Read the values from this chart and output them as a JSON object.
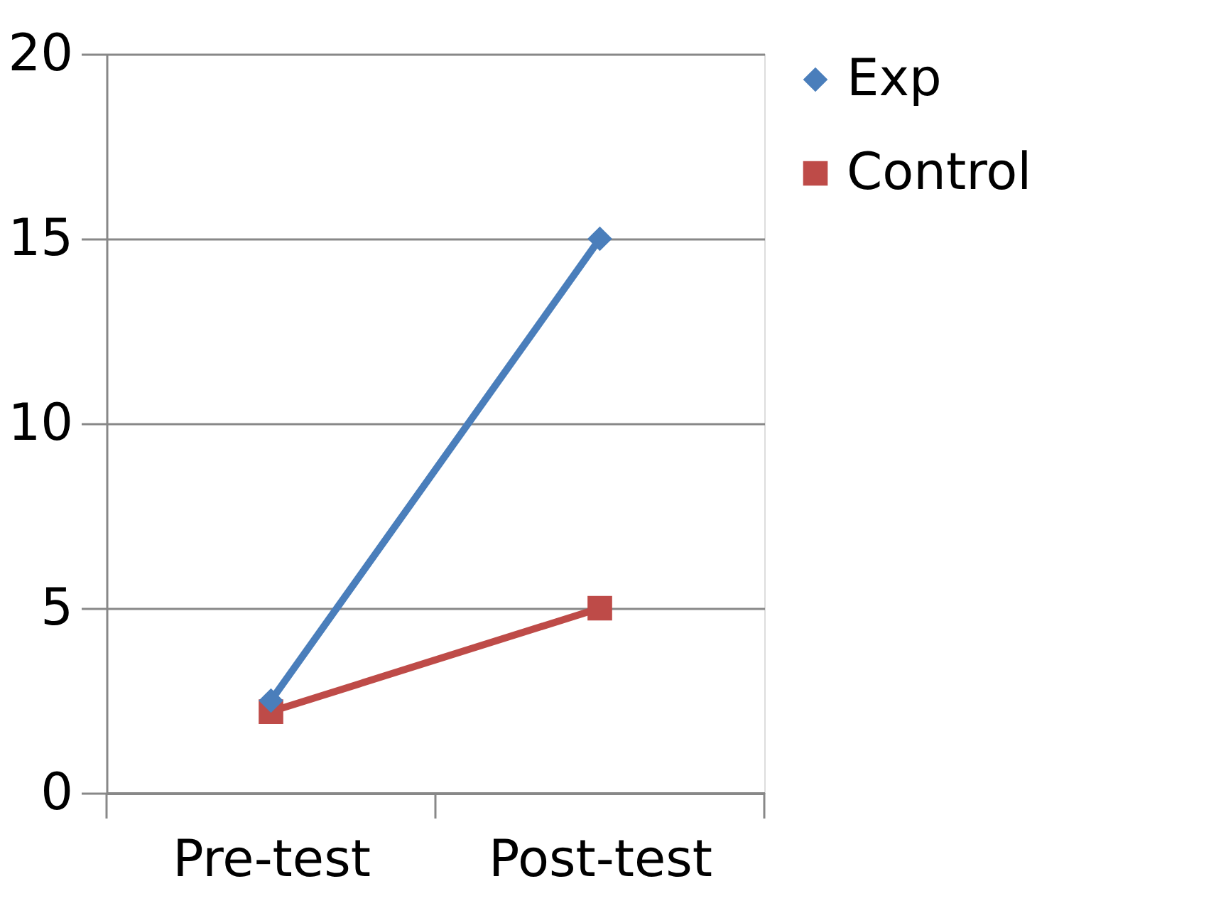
{
  "chart_data": {
    "type": "line",
    "categories": [
      "Pre-test",
      "Post-test"
    ],
    "series": [
      {
        "name": "Exp",
        "color": "#4a7ebb",
        "values": [
          2.5,
          15
        ],
        "marker": "diamond"
      },
      {
        "name": "Control",
        "color": "#be4b48",
        "values": [
          2.2,
          5
        ],
        "marker": "square"
      }
    ],
    "ylim": [
      0,
      20
    ],
    "yticks": [
      0,
      5,
      10,
      15,
      20
    ],
    "grid": "y",
    "legend": "right",
    "line_style": "solid"
  }
}
